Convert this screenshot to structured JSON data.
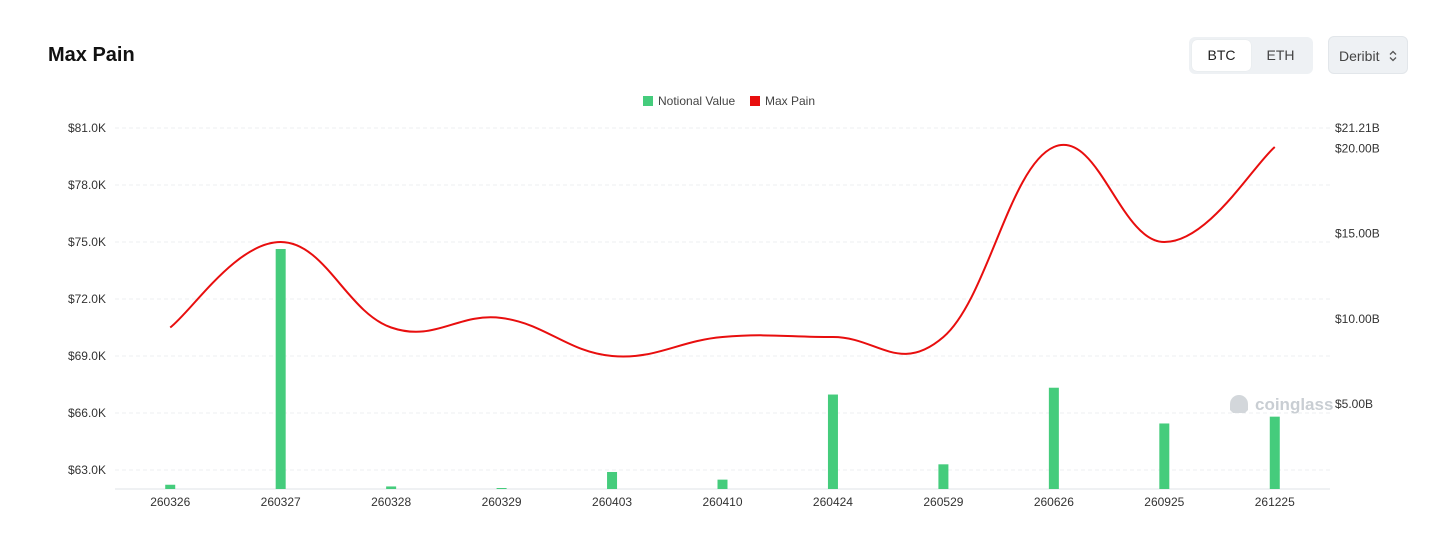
{
  "header": {
    "title": "Max Pain",
    "coins": [
      {
        "label": "BTC",
        "active": true
      },
      {
        "label": "ETH",
        "active": false
      }
    ],
    "exchange": {
      "selected": "Deribit"
    }
  },
  "watermark": "coinglass",
  "colors": {
    "notional": "#45cc7c",
    "maxpain": "#e80e0e",
    "grid": "#eceff2"
  },
  "chart_data": {
    "type": "bar",
    "categories": [
      "260326",
      "260327",
      "260328",
      "260329",
      "260403",
      "260410",
      "260424",
      "260529",
      "260626",
      "260925",
      "261225"
    ],
    "legend": [
      {
        "name": "Notional Value",
        "color": "#45cc7c"
      },
      {
        "name": "Max Pain",
        "color": "#e80e0e"
      }
    ],
    "legend_position": "top-center",
    "series": [
      {
        "name": "Notional Value",
        "type": "bar",
        "axis": "right",
        "values": [
          0.25,
          14.1,
          0.15,
          0.02,
          1.0,
          0.55,
          5.55,
          1.45,
          5.95,
          3.85,
          4.25
        ]
      },
      {
        "name": "Max Pain",
        "type": "line",
        "smooth": true,
        "axis": "left",
        "values": [
          70500,
          75000,
          70500,
          71000,
          69000,
          70000,
          70000,
          70000,
          80000,
          75000,
          80000
        ]
      }
    ],
    "left_axis": {
      "min": 62000,
      "max": 81000,
      "ticks": [
        63000,
        66000,
        69000,
        72000,
        75000,
        78000,
        81000
      ],
      "tick_labels": [
        "$63.0K",
        "$66.0K",
        "$69.0K",
        "$72.0K",
        "$75.0K",
        "$78.0K",
        "$81.0K"
      ]
    },
    "right_axis": {
      "min": 0,
      "max": 21.21,
      "ticks": [
        5,
        10,
        15,
        20,
        21.21
      ],
      "tick_labels": [
        "$5.00B",
        "$10.00B",
        "$15.00B",
        "$20.00B",
        "$21.21B"
      ]
    },
    "grid": true
  }
}
